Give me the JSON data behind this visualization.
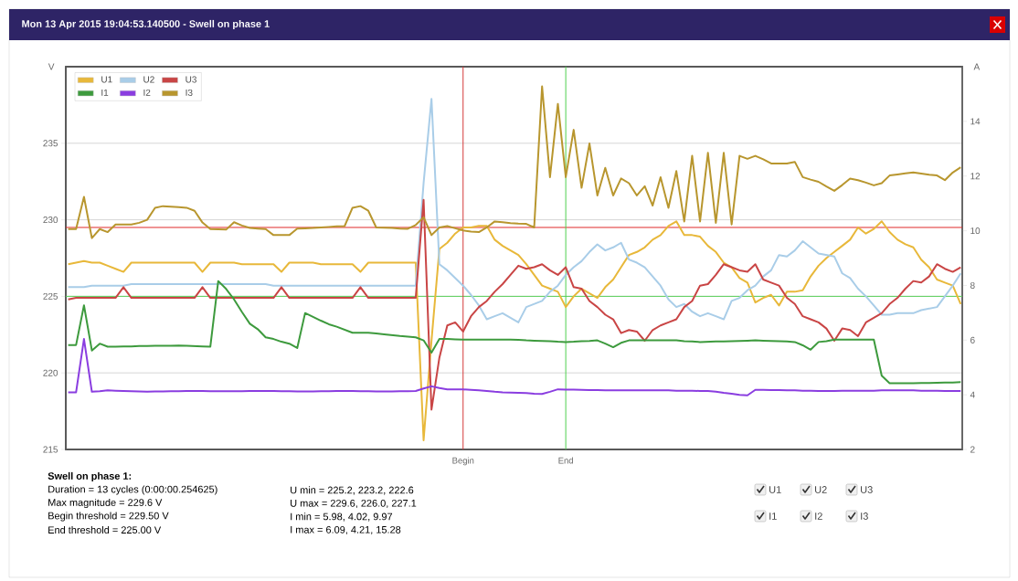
{
  "chart_data": {
    "type": "line",
    "title": "Mon 13 Apr 2015 19:04:53.140500 - Swell on phase 1",
    "ylabel": "V",
    "y2label": "A",
    "categories": [
      null,
      null,
      null,
      null,
      null,
      null,
      null,
      null,
      null,
      null,
      null,
      null,
      null,
      null,
      null,
      null,
      null,
      null,
      null,
      null,
      null,
      null,
      null,
      null,
      null,
      null,
      null,
      null,
      null,
      null,
      null,
      null,
      null,
      null,
      null,
      null,
      null,
      null,
      null,
      null,
      null,
      null,
      null,
      null,
      null,
      null,
      null,
      null,
      null,
      null,
      "Begin",
      null,
      null,
      null,
      null,
      null,
      null,
      null,
      null,
      null,
      null,
      null,
      null,
      "End",
      null,
      null,
      null,
      null,
      null,
      null,
      null,
      null,
      null,
      null,
      null,
      null,
      null,
      null,
      null,
      null,
      null,
      null,
      null,
      null,
      null,
      null,
      null,
      null,
      null,
      null,
      null,
      null,
      null,
      null,
      null,
      null,
      null,
      null,
      null,
      null,
      null,
      null,
      null,
      null,
      null,
      null,
      null,
      null,
      null,
      null,
      null,
      null,
      null,
      null
    ],
    "ylim": [
      215,
      240
    ],
    "yticks": [
      215,
      220,
      225,
      230,
      235
    ],
    "y2lim": [
      2,
      16
    ],
    "y2ticks": [
      2,
      4,
      6,
      8,
      10,
      12,
      14
    ],
    "grid": "y",
    "legend": "top left",
    "series": [
      {
        "name": "U1",
        "color": "#e8b83a",
        "values": [
          227.1,
          227.2,
          227.3,
          227.2,
          227.2,
          227.0,
          226.8,
          226.6,
          227.2,
          227.2,
          227.2,
          227.2,
          227.2,
          227.2,
          227.2,
          227.2,
          227.2,
          226.6,
          227.2,
          227.2,
          227.2,
          227.2,
          227.1,
          227.1,
          227.1,
          227.1,
          227.1,
          226.6,
          227.2,
          227.2,
          227.2,
          227.2,
          227.1,
          227.1,
          227.1,
          227.1,
          227.1,
          226.6,
          227.2,
          227.2,
          227.2,
          227.2,
          227.2,
          227.2,
          227.2,
          215.6,
          222.1,
          228.1,
          228.5,
          229.1,
          229.5,
          229.5,
          229.6,
          229.6,
          228.7,
          228.3,
          228.0,
          227.7,
          227.1,
          226.4,
          225.7,
          225.5,
          225.3,
          224.3,
          225.0,
          225.5,
          225.2,
          224.9,
          225.6,
          226.1,
          226.9,
          227.7,
          227.9,
          228.2,
          228.7,
          229.0,
          229.6,
          229.9,
          229.0,
          229.0,
          228.9,
          228.3,
          227.9,
          227.2,
          226.9,
          226.2,
          225.9,
          224.6,
          224.9,
          225.1,
          224.4,
          225.3,
          225.3,
          225.4,
          226.3,
          227.0,
          227.5,
          227.9,
          228.3,
          228.7,
          229.5,
          229.1,
          229.4,
          229.9,
          229.2,
          228.7,
          228.4,
          228.2,
          227.4,
          226.9,
          226.1,
          225.9,
          225.7,
          224.5
        ]
      },
      {
        "name": "U2",
        "color": "#a9cde8",
        "values": [
          225.6,
          225.6,
          225.6,
          225.7,
          225.7,
          225.7,
          225.7,
          225.7,
          225.8,
          225.8,
          225.8,
          225.8,
          225.8,
          225.8,
          225.8,
          225.8,
          225.8,
          225.8,
          225.8,
          225.8,
          225.8,
          225.8,
          225.8,
          225.8,
          225.8,
          225.8,
          225.7,
          225.7,
          225.7,
          225.7,
          225.7,
          225.7,
          225.7,
          225.7,
          225.7,
          225.7,
          225.7,
          225.7,
          225.7,
          225.7,
          225.7,
          225.7,
          225.7,
          225.7,
          225.7,
          232.4,
          237.9,
          227.1,
          226.7,
          226.2,
          225.7,
          225.1,
          224.4,
          223.5,
          223.7,
          223.9,
          223.6,
          223.3,
          224.3,
          224.5,
          224.7,
          225.3,
          225.7,
          226.4,
          226.9,
          227.3,
          227.9,
          228.4,
          228.0,
          228.2,
          228.5,
          227.4,
          227.2,
          226.9,
          226.3,
          225.7,
          224.8,
          224.3,
          224.5,
          224.0,
          223.7,
          223.9,
          223.7,
          223.5,
          224.7,
          224.9,
          225.4,
          225.7,
          226.3,
          226.7,
          227.7,
          227.6,
          228.0,
          228.6,
          228.2,
          227.8,
          227.7,
          227.6,
          226.5,
          226.2,
          225.5,
          225.0,
          224.4,
          223.8,
          223.8,
          223.9,
          223.9,
          223.9,
          224.1,
          224.2,
          224.3,
          225.0,
          225.7,
          226.5
        ]
      },
      {
        "name": "U3",
        "color": "#c94545",
        "values": [
          224.8,
          224.9,
          224.9,
          224.9,
          224.9,
          224.9,
          224.9,
          225.6,
          224.9,
          224.9,
          224.9,
          224.9,
          224.9,
          224.9,
          224.9,
          224.9,
          224.9,
          225.6,
          224.9,
          224.9,
          224.9,
          224.9,
          224.9,
          224.9,
          224.9,
          224.9,
          224.9,
          225.6,
          224.9,
          224.9,
          224.9,
          224.9,
          224.9,
          224.9,
          224.9,
          224.9,
          224.9,
          225.6,
          224.9,
          224.9,
          224.9,
          224.9,
          224.9,
          224.9,
          224.9,
          231.3,
          217.6,
          221.0,
          223.1,
          223.3,
          222.7,
          223.7,
          224.3,
          224.7,
          225.3,
          225.8,
          226.4,
          227.0,
          226.8,
          226.9,
          227.1,
          226.7,
          226.4,
          226.9,
          225.6,
          225.5,
          224.7,
          224.3,
          223.8,
          223.5,
          222.6,
          222.8,
          222.7,
          222.1,
          222.8,
          223.1,
          223.3,
          223.5,
          224.3,
          224.7,
          225.7,
          225.8,
          226.4,
          227.1,
          226.9,
          226.7,
          226.6,
          227.1,
          226.1,
          225.9,
          225.7,
          224.9,
          224.5,
          223.7,
          223.5,
          223.3,
          222.9,
          222.1,
          222.9,
          222.8,
          222.4,
          223.3,
          223.6,
          223.9,
          224.5,
          224.9,
          225.5,
          226.0,
          225.9,
          226.3,
          227.1,
          226.8,
          226.6,
          226.9
        ]
      },
      {
        "name": "I1",
        "color": "#3d9a3d",
        "axis": "y2",
        "values": [
          5.82,
          5.82,
          7.27,
          5.62,
          5.87,
          5.76,
          5.76,
          5.77,
          5.77,
          5.78,
          5.78,
          5.79,
          5.79,
          5.79,
          5.8,
          5.79,
          5.78,
          5.77,
          5.76,
          8.16,
          7.87,
          7.49,
          7.03,
          6.6,
          6.4,
          6.1,
          6.04,
          5.94,
          5.87,
          5.71,
          6.99,
          6.85,
          6.71,
          6.58,
          6.49,
          6.38,
          6.27,
          6.27,
          6.27,
          6.24,
          6.21,
          6.18,
          6.15,
          6.13,
          6.1,
          5.99,
          5.54,
          6.04,
          6.04,
          6.03,
          6.02,
          6.02,
          6.02,
          6.02,
          6.02,
          6.02,
          6.02,
          6.01,
          5.99,
          5.98,
          5.97,
          5.96,
          5.94,
          5.93,
          5.94,
          5.96,
          5.97,
          5.99,
          5.87,
          5.74,
          5.9,
          5.99,
          5.99,
          5.99,
          5.99,
          5.99,
          5.99,
          5.99,
          5.96,
          5.95,
          5.93,
          5.94,
          5.95,
          5.95,
          5.96,
          5.97,
          5.98,
          5.99,
          5.98,
          5.97,
          5.96,
          5.95,
          5.93,
          5.81,
          5.65,
          5.93,
          5.96,
          6.02,
          6.02,
          6.02,
          6.02,
          6.02,
          6.02,
          4.7,
          4.42,
          4.42,
          4.42,
          4.42,
          4.43,
          4.43,
          4.44,
          4.45,
          4.45,
          4.46
        ]
      },
      {
        "name": "I2",
        "color": "#8a3de0",
        "axis": "y2",
        "values": [
          4.09,
          4.09,
          6.04,
          4.11,
          4.13,
          4.16,
          4.15,
          4.14,
          4.13,
          4.12,
          4.11,
          4.12,
          4.12,
          4.13,
          4.13,
          4.14,
          4.14,
          4.14,
          4.13,
          4.13,
          4.13,
          4.13,
          4.13,
          4.14,
          4.14,
          4.14,
          4.14,
          4.13,
          4.13,
          4.12,
          4.12,
          4.12,
          4.13,
          4.13,
          4.14,
          4.14,
          4.14,
          4.13,
          4.13,
          4.12,
          4.12,
          4.12,
          4.13,
          4.13,
          4.14,
          4.23,
          4.31,
          4.25,
          4.2,
          4.2,
          4.2,
          4.18,
          4.16,
          4.14,
          4.11,
          4.09,
          4.08,
          4.07,
          4.06,
          4.04,
          4.03,
          4.11,
          4.2,
          4.19,
          4.19,
          4.18,
          4.17,
          4.17,
          4.16,
          4.16,
          4.16,
          4.16,
          4.16,
          4.16,
          4.16,
          4.16,
          4.16,
          4.15,
          4.15,
          4.15,
          4.14,
          4.14,
          4.11,
          4.07,
          4.04,
          4.0,
          3.98,
          4.18,
          4.18,
          4.17,
          4.17,
          4.16,
          4.16,
          4.15,
          4.15,
          4.14,
          4.14,
          4.14,
          4.15,
          4.15,
          4.15,
          4.15,
          4.15,
          4.16,
          4.16,
          4.16,
          4.16,
          4.16,
          4.15,
          4.15,
          4.15,
          4.14,
          4.14,
          4.14
        ]
      },
      {
        "name": "I3",
        "color": "#b8962e",
        "axis": "y2",
        "values": [
          10.06,
          10.06,
          11.24,
          9.73,
          10.06,
          9.95,
          10.23,
          10.23,
          10.23,
          10.29,
          10.4,
          10.84,
          10.9,
          10.88,
          10.86,
          10.84,
          10.73,
          10.3,
          10.06,
          10.05,
          10.04,
          10.31,
          10.19,
          10.1,
          10.08,
          10.06,
          9.84,
          9.84,
          9.84,
          10.08,
          10.09,
          10.1,
          10.12,
          10.14,
          10.16,
          10.17,
          10.84,
          10.9,
          10.73,
          10.12,
          10.11,
          10.1,
          10.08,
          10.07,
          10.21,
          10.49,
          9.84,
          10.12,
          10.17,
          10.09,
          10.01,
          9.97,
          9.95,
          10.12,
          10.34,
          10.31,
          10.28,
          10.26,
          10.25,
          10.12,
          15.28,
          11.96,
          14.64,
          11.96,
          13.69,
          11.57,
          13.19,
          11.29,
          12.3,
          11.29,
          11.91,
          11.74,
          11.29,
          11.63,
          10.92,
          11.96,
          10.84,
          12.18,
          10.34,
          12.74,
          10.34,
          12.85,
          10.29,
          12.85,
          10.23,
          12.74,
          12.63,
          12.74,
          12.61,
          12.46,
          12.46,
          12.46,
          12.52,
          11.96,
          11.87,
          11.79,
          11.62,
          11.46,
          11.67,
          11.91,
          11.85,
          11.76,
          11.66,
          11.74,
          12.02,
          12.06,
          12.1,
          12.13,
          12.09,
          12.05,
          12.02,
          11.85,
          12.13,
          12.32
        ]
      }
    ],
    "ref_lines": [
      {
        "axis": "y",
        "value": 229.5,
        "color": "#e02828"
      },
      {
        "axis": "y",
        "value": 225.0,
        "color": "#5ad25a"
      },
      {
        "axis": "x",
        "value": "Begin",
        "color": "#d43a3a"
      },
      {
        "axis": "x",
        "value": "End",
        "color": "#4fd04f"
      }
    ],
    "annotations": [
      "Swell on phase 1:",
      "Duration = 13 cycles (0:00:00.254625)",
      "Max magnitude = 229.6 V",
      "Begin threshold = 229.50 V",
      "End threshold = 225.00 V",
      "U min = 225.2, 223.2, 222.6",
      "U max = 229.6, 226.0, 227.1",
      "I min = 5.98, 4.02, 9.97",
      "I max = 6.09, 4.21, 15.28"
    ]
  }
}
